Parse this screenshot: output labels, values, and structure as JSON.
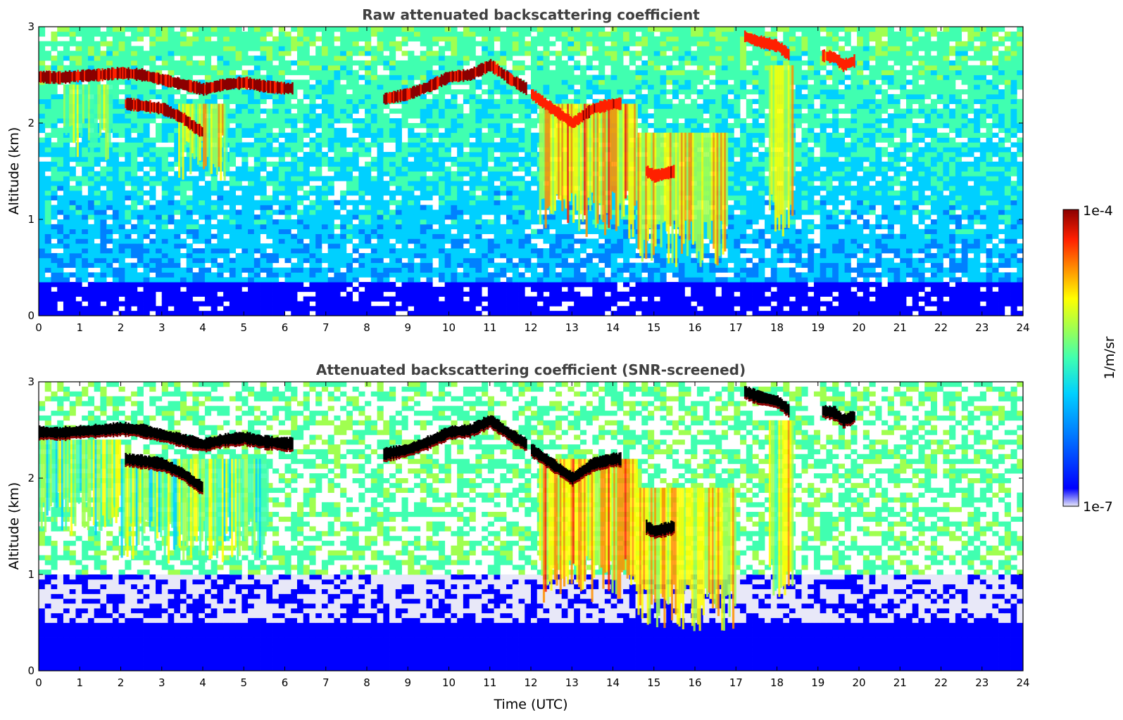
{
  "chart_data": [
    {
      "type": "heatmap",
      "title": "Raw attenuated backscattering coefficient",
      "xlabel": "",
      "ylabel": "Altitude (km)",
      "xlim": [
        0,
        24
      ],
      "ylim": [
        0,
        3
      ],
      "x_ticks": [
        "0",
        "1",
        "2",
        "3",
        "4",
        "5",
        "6",
        "7",
        "8",
        "9",
        "10",
        "11",
        "12",
        "13",
        "14",
        "15",
        "16",
        "17",
        "18",
        "19",
        "20",
        "21",
        "22",
        "23",
        "24"
      ],
      "y_ticks": [
        "0",
        "1",
        "2",
        "3"
      ],
      "layers": [
        {
          "kind": "cloud",
          "x": [
            0,
            0.5,
            1,
            1.5,
            2,
            2.5,
            3,
            3.5,
            4,
            4.5,
            5,
            5.5,
            6,
            6.2
          ],
          "y": [
            2.48,
            2.47,
            2.49,
            2.5,
            2.52,
            2.5,
            2.45,
            2.4,
            2.35,
            2.4,
            2.42,
            2.38,
            2.36,
            2.36
          ],
          "level": 1.0
        },
        {
          "kind": "cloud",
          "x": [
            2.1,
            2.5,
            3,
            3.5,
            3.8,
            4.0
          ],
          "y": [
            2.2,
            2.18,
            2.15,
            2.05,
            1.95,
            1.9
          ],
          "level": 1.0
        },
        {
          "kind": "cloud",
          "x": [
            8.4,
            9,
            9.5,
            10,
            10.5,
            11,
            11.5,
            11.9
          ],
          "y": [
            2.25,
            2.3,
            2.38,
            2.48,
            2.5,
            2.6,
            2.45,
            2.35
          ],
          "level": 1.0
        },
        {
          "kind": "cloud",
          "x": [
            12,
            12.5,
            13,
            13.5,
            14,
            14.2
          ],
          "y": [
            2.3,
            2.15,
            2.0,
            2.15,
            2.2,
            2.2
          ],
          "level": 0.95
        },
        {
          "kind": "cloud",
          "x": [
            14.8,
            15,
            15.3,
            15.5
          ],
          "y": [
            1.5,
            1.45,
            1.48,
            1.5
          ],
          "level": 0.95
        },
        {
          "kind": "cloud",
          "x": [
            17.2,
            17.5,
            18.0,
            18.3
          ],
          "y": [
            2.9,
            2.85,
            2.8,
            2.7
          ],
          "level": 0.95
        },
        {
          "kind": "cloud",
          "x": [
            19.1,
            19.4,
            19.6,
            19.9
          ],
          "y": [
            2.7,
            2.68,
            2.6,
            2.65
          ],
          "level": 0.9
        }
      ],
      "precip": [
        {
          "x": [
            0.6,
            1.8
          ],
          "top": 2.4,
          "bottom": 1.6,
          "level": 0.55
        },
        {
          "x": [
            3.4,
            4.6
          ],
          "top": 2.2,
          "bottom": 1.4,
          "level": 0.6
        },
        {
          "x": [
            12.2,
            14.6
          ],
          "top": 2.2,
          "bottom": 0.8,
          "level": 0.7
        },
        {
          "x": [
            14.6,
            16.8
          ],
          "top": 1.9,
          "bottom": 0.5,
          "level": 0.65
        },
        {
          "x": [
            17.8,
            18.4
          ],
          "top": 2.6,
          "bottom": 0.8,
          "level": 0.6
        }
      ]
    },
    {
      "type": "heatmap",
      "title": "Attenuated backscattering coefficient (SNR-screened)",
      "xlabel": "Time (UTC)",
      "ylabel": "Altitude (km)",
      "xlim": [
        0,
        24
      ],
      "ylim": [
        0,
        3
      ],
      "x_ticks": [
        "0",
        "1",
        "2",
        "3",
        "4",
        "5",
        "6",
        "7",
        "8",
        "9",
        "10",
        "11",
        "12",
        "13",
        "14",
        "15",
        "16",
        "17",
        "18",
        "19",
        "20",
        "21",
        "22",
        "23",
        "24"
      ],
      "y_ticks": [
        "0",
        "1",
        "2",
        "3"
      ],
      "layers": [
        {
          "kind": "cloud",
          "x": [
            0,
            0.5,
            1,
            1.5,
            2,
            2.5,
            3,
            3.5,
            4,
            4.5,
            5,
            5.5,
            6,
            6.2
          ],
          "y": [
            2.48,
            2.47,
            2.49,
            2.5,
            2.52,
            2.5,
            2.45,
            2.4,
            2.35,
            2.4,
            2.42,
            2.38,
            2.36,
            2.36
          ],
          "level": 1.0
        },
        {
          "kind": "cloud",
          "x": [
            2.1,
            2.5,
            3,
            3.5,
            3.8,
            4.0
          ],
          "y": [
            2.2,
            2.18,
            2.15,
            2.05,
            1.95,
            1.9
          ],
          "level": 1.0
        },
        {
          "kind": "cloud",
          "x": [
            8.4,
            9,
            9.5,
            10,
            10.5,
            11,
            11.5,
            11.9
          ],
          "y": [
            2.25,
            2.3,
            2.38,
            2.48,
            2.5,
            2.6,
            2.45,
            2.35
          ],
          "level": 1.0
        },
        {
          "kind": "cloud",
          "x": [
            12,
            12.5,
            13,
            13.5,
            14,
            14.2
          ],
          "y": [
            2.3,
            2.15,
            2.0,
            2.15,
            2.2,
            2.2
          ],
          "level": 1.0
        },
        {
          "kind": "cloud",
          "x": [
            14.8,
            15,
            15.3,
            15.5
          ],
          "y": [
            1.5,
            1.45,
            1.48,
            1.5
          ],
          "level": 1.0
        },
        {
          "kind": "cloud",
          "x": [
            17.2,
            17.5,
            18.0,
            18.3
          ],
          "y": [
            2.9,
            2.85,
            2.8,
            2.7
          ],
          "level": 1.0
        },
        {
          "kind": "cloud",
          "x": [
            19.1,
            19.4,
            19.6,
            19.9
          ],
          "y": [
            2.7,
            2.68,
            2.6,
            2.65
          ],
          "level": 1.0
        }
      ],
      "precip": [
        {
          "x": [
            0.0,
            2.0
          ],
          "top": 2.4,
          "bottom": 1.4,
          "level": 0.5
        },
        {
          "x": [
            2.0,
            5.6
          ],
          "top": 2.2,
          "bottom": 1.1,
          "level": 0.5
        },
        {
          "x": [
            12.2,
            14.6
          ],
          "top": 2.2,
          "bottom": 0.7,
          "level": 0.7
        },
        {
          "x": [
            14.6,
            17.0
          ],
          "top": 1.9,
          "bottom": 0.4,
          "level": 0.65
        },
        {
          "x": [
            17.8,
            18.4
          ],
          "top": 2.6,
          "bottom": 0.7,
          "level": 0.6
        }
      ]
    }
  ],
  "colorbar": {
    "label": "1/m/sr",
    "max_label": "1e-4",
    "min_label": "1e-7",
    "colors": [
      "#e8e8f8",
      "#0000ff",
      "#0080ff",
      "#00d0ff",
      "#40ffb0",
      "#a0ff50",
      "#ffff00",
      "#ff9000",
      "#ff2000",
      "#8b0000"
    ]
  }
}
